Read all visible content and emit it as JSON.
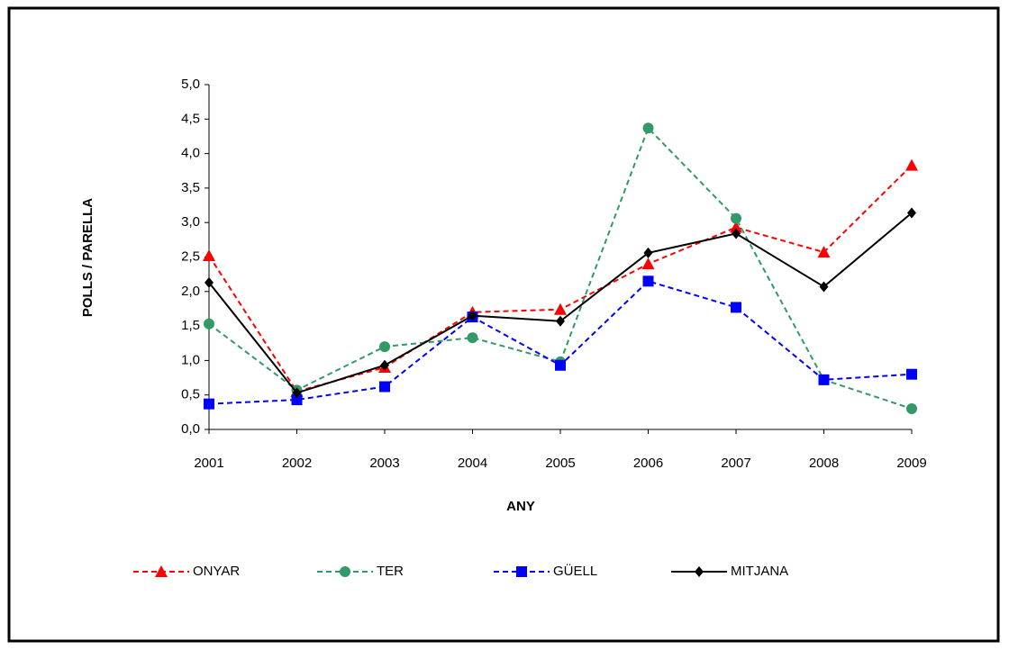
{
  "chart_data": {
    "type": "line",
    "x_label": "ANY",
    "y_label": "POLLS / PARELLA",
    "categories": [
      "2001",
      "2002",
      "2003",
      "2004",
      "2005",
      "2006",
      "2007",
      "2008",
      "2009"
    ],
    "series": [
      {
        "name": "ONYAR",
        "color": "#ff0000",
        "line_style": "dashed",
        "marker": "triangle",
        "values": [
          2.52,
          0.55,
          0.9,
          1.7,
          1.74,
          2.4,
          2.93,
          2.57,
          3.83
        ]
      },
      {
        "name": "TER",
        "color": "#339966",
        "line_style": "dashed",
        "marker": "circle",
        "values": [
          1.53,
          0.57,
          1.2,
          1.33,
          0.98,
          4.37,
          3.06,
          0.72,
          0.3
        ]
      },
      {
        "name": "GÜELL",
        "color": "#0000ff",
        "line_style": "dashed",
        "marker": "square",
        "values": [
          0.37,
          0.43,
          0.62,
          1.63,
          0.93,
          2.15,
          1.77,
          0.72,
          0.8
        ]
      },
      {
        "name": "MITJANA",
        "color": "#000000",
        "line_style": "solid",
        "marker": "diamond",
        "values": [
          2.13,
          0.53,
          0.93,
          1.65,
          1.57,
          2.56,
          2.84,
          2.07,
          3.14
        ]
      }
    ],
    "ylim": [
      0,
      5
    ],
    "yticks": [
      {
        "value": 0,
        "label": "0,0"
      },
      {
        "value": 0.5,
        "label": "0,5"
      },
      {
        "value": 1,
        "label": "1,0"
      },
      {
        "value": 1.5,
        "label": "1,5"
      },
      {
        "value": 2,
        "label": "2,0"
      },
      {
        "value": 2.5,
        "label": "2,5"
      },
      {
        "value": 3,
        "label": "3,0"
      },
      {
        "value": 3.5,
        "label": "3,5"
      },
      {
        "value": 4,
        "label": "4,0"
      },
      {
        "value": 4.5,
        "label": "4,5"
      },
      {
        "value": 5,
        "label": "5,0"
      }
    ],
    "grid": false,
    "legend": "bottom"
  }
}
